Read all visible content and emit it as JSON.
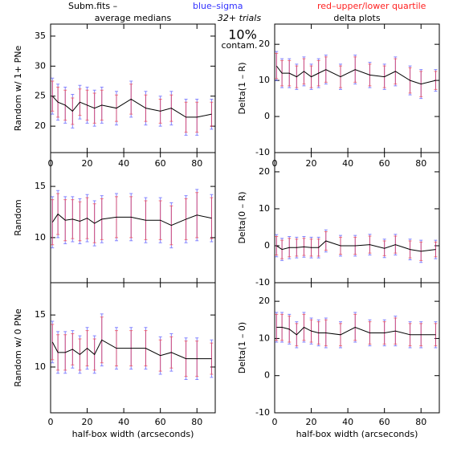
{
  "header": {
    "file": "Subm.fits –",
    "trials": "32+ trials",
    "contam_pct": "10%",
    "contam": "contam."
  },
  "legend": [
    {
      "text": "blue–sigma",
      "color": "#3333ff"
    },
    {
      "text": "red–upper/lower quartile",
      "color": "#ff2222"
    }
  ],
  "chart_data": [
    {
      "type": "line",
      "title": "average medians",
      "ylabel": "Random w/ 1+ PNe",
      "xlim": [
        0,
        90
      ],
      "xticks": [
        0,
        20,
        40,
        60,
        80
      ],
      "ylim": [
        15.6,
        37
      ],
      "yticks": [
        20,
        25,
        30,
        35
      ],
      "x": [
        1,
        4,
        8,
        12,
        16,
        20,
        24,
        28,
        36,
        44,
        52,
        60,
        66,
        74,
        80,
        88
      ],
      "series": [
        {
          "color": "#000000",
          "values": [
            25,
            24,
            23.5,
            22.5,
            24,
            23.5,
            23,
            23.5,
            23,
            24.5,
            23,
            22.5,
            23,
            21.5,
            21.5,
            22
          ],
          "sigma": [
            3,
            3,
            3,
            2.8,
            2.8,
            3,
            3,
            3,
            2.8,
            3,
            2.8,
            2.5,
            2.8,
            3,
            3,
            2.5
          ],
          "quartile": [
            2.5,
            2.5,
            2.5,
            2.2,
            2.2,
            2.5,
            2.5,
            2.5,
            2.2,
            2.5,
            2.2,
            2,
            2.2,
            2.5,
            2.5,
            2
          ]
        }
      ]
    },
    {
      "type": "line",
      "title": "delta plots",
      "ylabel": "Delta(1 – R)",
      "xlim": [
        0,
        90
      ],
      "xticks": [
        0,
        20,
        40,
        60,
        80
      ],
      "ylim": [
        -10,
        25.6
      ],
      "yticks": [
        -10,
        0,
        10,
        20
      ],
      "x": [
        1,
        4,
        8,
        12,
        16,
        20,
        24,
        28,
        36,
        44,
        52,
        60,
        66,
        74,
        80,
        88
      ],
      "series": [
        {
          "color": "#000000",
          "values": [
            14,
            12,
            12,
            11,
            12.5,
            11,
            12,
            13,
            11,
            13,
            11.5,
            11,
            12.5,
            10,
            9,
            10
          ],
          "sigma": [
            4,
            4,
            4,
            3.5,
            4,
            3.5,
            4,
            4,
            3.5,
            4,
            3.5,
            3.5,
            4,
            4,
            4,
            3
          ],
          "quartile": [
            3.5,
            3.5,
            3.5,
            3,
            3.5,
            3,
            3.5,
            3.5,
            3,
            3.5,
            3,
            3,
            3.5,
            3.5,
            3.5,
            2.5
          ]
        }
      ]
    },
    {
      "type": "line",
      "ylabel": "Random",
      "xlim": [
        0,
        90
      ],
      "xticks": [
        0,
        20,
        40,
        60,
        80
      ],
      "xtick_labels": "top",
      "ylim": [
        5.6,
        18.3
      ],
      "yticks": [
        10,
        15
      ],
      "x": [
        1,
        4,
        8,
        12,
        16,
        20,
        24,
        28,
        36,
        44,
        52,
        60,
        66,
        74,
        80,
        88
      ],
      "series": [
        {
          "color": "#000000",
          "values": [
            11.5,
            12.3,
            11.7,
            11.8,
            11.6,
            11.9,
            11.4,
            11.8,
            12,
            12,
            11.7,
            11.7,
            11.2,
            11.8,
            12.2,
            11.9
          ],
          "sigma": [
            2.5,
            2.3,
            2.3,
            2.2,
            2.2,
            2.3,
            2.2,
            2.3,
            2.3,
            2.3,
            2.2,
            2.2,
            2.2,
            2.3,
            2.5,
            2.3
          ],
          "quartile": [
            2.2,
            2,
            2,
            1.9,
            1.9,
            2,
            1.9,
            2,
            2,
            2,
            1.9,
            1.9,
            1.9,
            2,
            2.2,
            2
          ]
        }
      ]
    },
    {
      "type": "line",
      "ylabel": "Delta(0 – R)",
      "xlim": [
        0,
        90
      ],
      "xticks": [
        0,
        20,
        40,
        60,
        80
      ],
      "xtick_labels": "top",
      "ylim": [
        -10,
        25.2
      ],
      "yticks": [
        -10,
        0,
        10,
        20
      ],
      "x": [
        1,
        4,
        8,
        12,
        16,
        20,
        24,
        28,
        36,
        44,
        52,
        60,
        66,
        74,
        80,
        88
      ],
      "series": [
        {
          "color": "#000000",
          "values": [
            0,
            -1,
            -0.5,
            -0.5,
            -0.3,
            -0.5,
            -0.5,
            1.3,
            0,
            0,
            0.3,
            -0.7,
            0.3,
            -1,
            -1.5,
            -1
          ],
          "sigma": [
            3,
            3,
            3,
            2.8,
            2.8,
            2.8,
            2.8,
            3,
            2.8,
            2.8,
            2.8,
            2.5,
            2.8,
            2.8,
            3,
            2.5
          ],
          "quartile": [
            2.5,
            2.5,
            2.5,
            2.3,
            2.3,
            2.3,
            2.3,
            2.5,
            2.3,
            2.3,
            2.3,
            2,
            2.3,
            2.3,
            2.5,
            2
          ]
        }
      ]
    },
    {
      "type": "line",
      "ylabel": "Random w/ 0 PNe",
      "xlabel": "half-box width (arcseconds)",
      "xlim": [
        0,
        90
      ],
      "xticks": [
        0,
        20,
        40,
        60,
        80
      ],
      "xtick_labels": "bottom",
      "ylim": [
        5.6,
        18.1
      ],
      "yticks": [
        10,
        15
      ],
      "x": [
        1,
        4,
        8,
        12,
        16,
        20,
        24,
        28,
        36,
        44,
        52,
        60,
        66,
        74,
        80,
        88
      ],
      "series": [
        {
          "color": "#000000",
          "values": [
            12.4,
            11.4,
            11.4,
            11.7,
            11.2,
            11.8,
            11.2,
            12.6,
            11.8,
            11.8,
            11.8,
            11.1,
            11.4,
            10.8,
            10.8,
            10.8
          ],
          "sigma": [
            2,
            2,
            2,
            1.8,
            1.8,
            2,
            1.8,
            2.5,
            2,
            2,
            2,
            1.8,
            1.8,
            2,
            2,
            1.8
          ],
          "quartile": [
            1.7,
            1.7,
            1.7,
            1.5,
            1.5,
            1.7,
            1.5,
            2.2,
            1.7,
            1.7,
            1.7,
            1.5,
            1.5,
            1.7,
            1.7,
            1.5
          ]
        }
      ]
    },
    {
      "type": "line",
      "ylabel": "Delta(1 – 0)",
      "xlabel": "half-box width (arcseconds)",
      "xlim": [
        0,
        90
      ],
      "xticks": [
        0,
        20,
        40,
        60,
        80
      ],
      "xtick_labels": "bottom",
      "ylim": [
        -10,
        25
      ],
      "yticks": [
        -10,
        0,
        10,
        20
      ],
      "x": [
        1,
        4,
        8,
        12,
        16,
        20,
        24,
        28,
        36,
        44,
        52,
        60,
        66,
        74,
        80,
        88
      ],
      "series": [
        {
          "color": "#000000",
          "values": [
            13,
            13,
            12.5,
            11,
            13,
            12,
            11.5,
            11.5,
            11,
            13,
            11.5,
            11.5,
            12,
            11,
            11,
            11
          ],
          "sigma": [
            4,
            4,
            4,
            3.5,
            4,
            3.5,
            3.5,
            4,
            3.5,
            4,
            3.5,
            3.5,
            4,
            3.5,
            3.5,
            3.5
          ],
          "quartile": [
            3.5,
            3.5,
            3.5,
            3,
            3.5,
            3,
            3,
            3.5,
            3,
            3.5,
            3,
            3,
            3.5,
            3,
            3,
            3
          ]
        }
      ]
    }
  ]
}
